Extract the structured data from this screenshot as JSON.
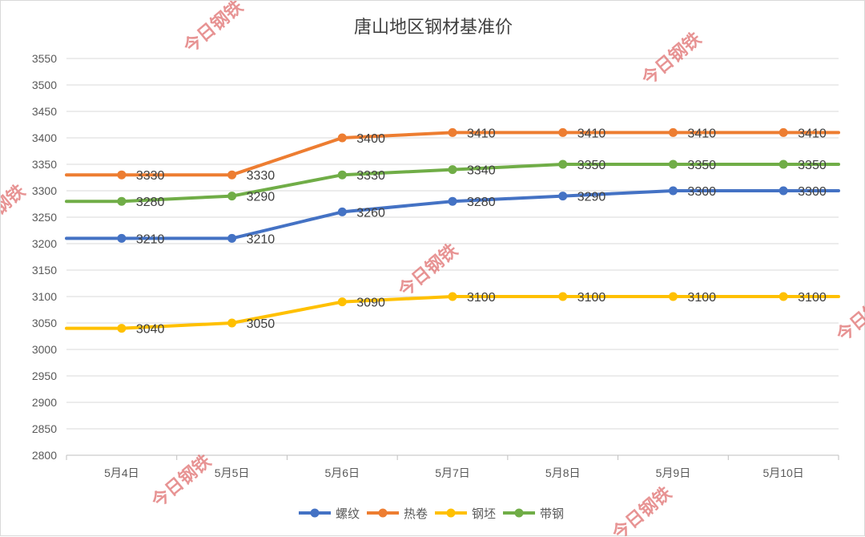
{
  "chart_data": {
    "type": "line",
    "title": "唐山地区钢材基准价",
    "categories": [
      "5月4日",
      "5月5日",
      "5月6日",
      "5月7日",
      "5月8日",
      "5月9日",
      "5月10日"
    ],
    "ylim": [
      2800,
      3550
    ],
    "ytick_step": 50,
    "grid": true,
    "legend_position": "bottom",
    "series": [
      {
        "name": "螺纹",
        "color": "#4472C4",
        "values": [
          3210,
          3210,
          3260,
          3280,
          3290,
          3300,
          3300
        ]
      },
      {
        "name": "热卷",
        "color": "#ED7D31",
        "values": [
          3330,
          3330,
          3400,
          3410,
          3410,
          3410,
          3410
        ]
      },
      {
        "name": "钢坯",
        "color": "#FFC000",
        "values": [
          3040,
          3050,
          3090,
          3100,
          3100,
          3100,
          3100
        ]
      },
      {
        "name": "带钢",
        "color": "#70AD47",
        "values": [
          3280,
          3290,
          3330,
          3340,
          3350,
          3350,
          3350
        ]
      }
    ]
  },
  "watermark": {
    "text": "今日钢铁",
    "color": "#e07070"
  }
}
